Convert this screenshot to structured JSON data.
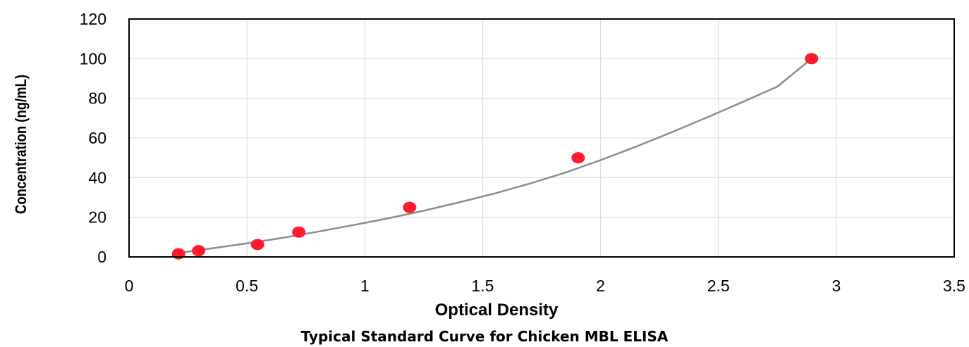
{
  "chart_data": {
    "type": "scatter",
    "caption": "Typical Standard Curve for Chicken MBL ELISA",
    "xlabel": "Optical Density",
    "ylabel": "Concentration (ng/mL)",
    "xlim": [
      0,
      3.5
    ],
    "ylim": [
      0,
      120
    ],
    "x_ticks": [
      "0",
      "0.5",
      "1",
      "1.5",
      "2",
      "2.5",
      "3",
      "3.5"
    ],
    "y_ticks": [
      "0",
      "20",
      "40",
      "60",
      "80",
      "100",
      "120"
    ],
    "grid": true,
    "series": [
      {
        "x": [
          0.21,
          0.295,
          0.545,
          0.72,
          1.19,
          1.905,
          2.895
        ],
        "y": [
          1.56,
          3.13,
          6.25,
          12.5,
          25,
          50,
          100
        ]
      }
    ],
    "trendline": {
      "kind": "polynomial",
      "x": [
        0.21,
        0.35,
        0.5,
        0.65,
        0.8,
        0.95,
        1.1,
        1.25,
        1.4,
        1.55,
        1.7,
        1.85,
        2.0,
        2.15,
        2.3,
        2.45,
        2.6,
        2.75,
        2.895
      ],
      "y": [
        2.0,
        4.3,
        6.8,
        9.6,
        12.7,
        16.0,
        19.5,
        23.3,
        27.5,
        32.0,
        37.0,
        42.5,
        48.8,
        55.6,
        62.8,
        70.3,
        78.0,
        85.9,
        100.0
      ]
    },
    "colors": {
      "point": "#ff1a2e",
      "trendline": "#8c8c8c",
      "grid": "#d9d9d9",
      "axis": "#000000"
    }
  }
}
